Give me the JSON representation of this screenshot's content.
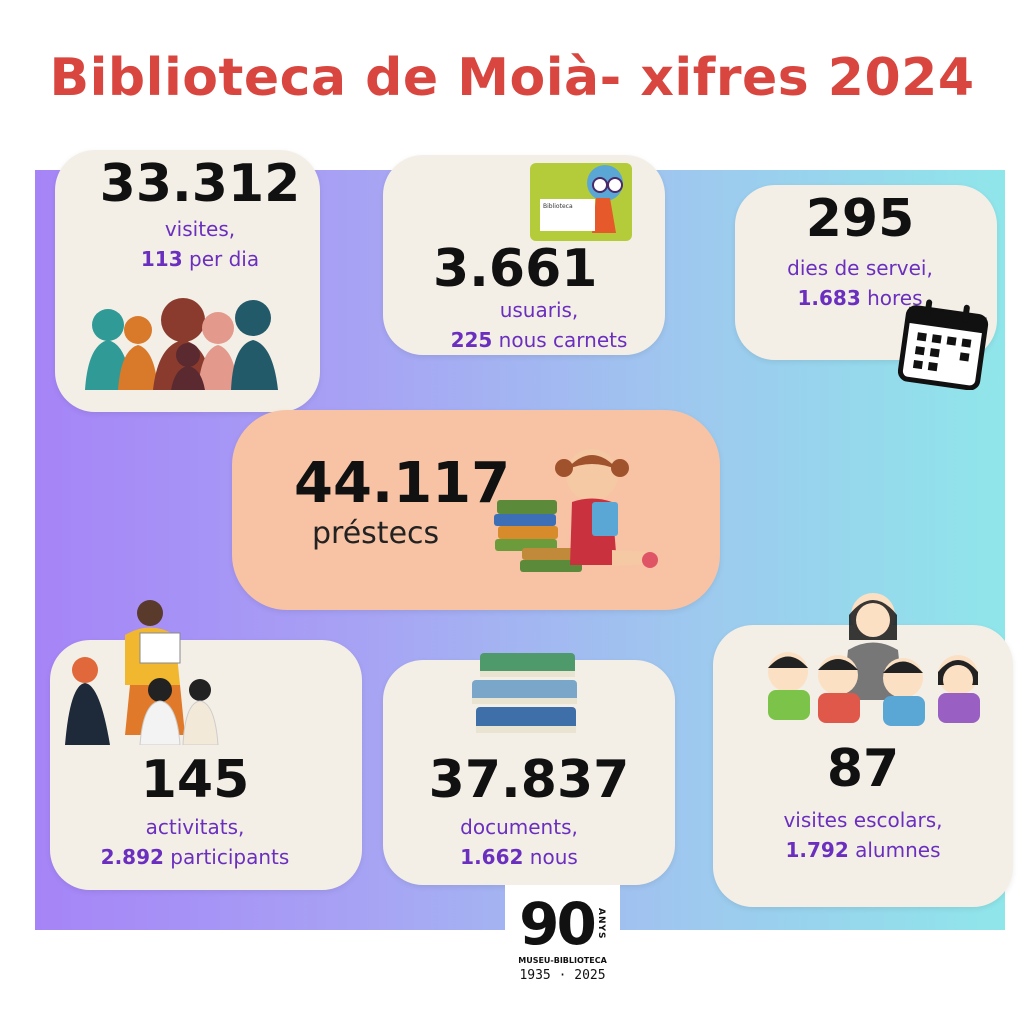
{
  "title": "Biblioteca de Moià- xifres 2024",
  "colors": {
    "title": "#d8463f",
    "accent_text": "#6a2fbf",
    "card": "#f4efe6",
    "highlight_card": "#f7c3a4"
  },
  "cards": {
    "visits": {
      "number": "33.312",
      "line1": "visites,",
      "bold2": "113",
      "line2": " per dia",
      "icon": "people-silhouettes-icon"
    },
    "users": {
      "number": "3.661",
      "line1": "usuaris,",
      "bold2": "225",
      "line2": " nous carnets",
      "icon": "library-card-icon",
      "card_title": "Biblioteca"
    },
    "days": {
      "number": "295",
      "line1": "dies de servei,",
      "bold2": "1.683",
      "line2": " hores",
      "icon": "calendar-icon"
    },
    "loans": {
      "number": "44.117",
      "line1": "préstecs",
      "icon": "girl-reading-books-icon"
    },
    "activities": {
      "number": "145",
      "line1": "activitats,",
      "bold2": "2.892",
      "line2": " participants",
      "icon": "storytelling-group-icon"
    },
    "documents": {
      "number": "37.837",
      "line1": "documents,",
      "bold2": "1.662",
      "line2": " nous",
      "icon": "book-stack-icon"
    },
    "school": {
      "number": "87",
      "line1": "visites escolars,",
      "bold2": "1.792",
      "line2": " alumnes",
      "icon": "teacher-children-icon"
    }
  },
  "logo": {
    "number": "90",
    "vertical": "ANYS",
    "name": "MUSEU-BIBLIOTECA",
    "years": "1935 · 2025"
  }
}
